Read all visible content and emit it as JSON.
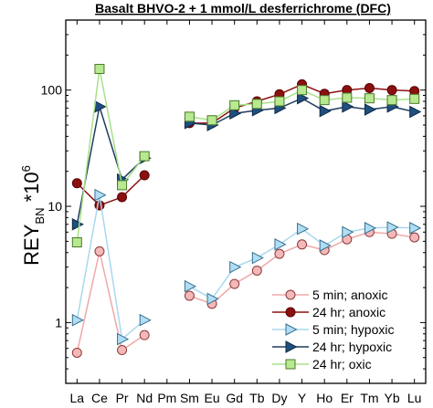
{
  "chart_data": {
    "type": "line",
    "title": "Basalt BHVO-2 + 1 mmol/L desferrichrome (DFC)",
    "ylabel": {
      "main": "REY",
      "sub": "BN",
      "tail": " *10",
      "sup": "6"
    },
    "yscale": "log",
    "ylim": [
      0.3,
      400
    ],
    "yticks": [
      1,
      10,
      100
    ],
    "ytick_labels": [
      "1",
      "10",
      "100"
    ],
    "categories": [
      "La",
      "Ce",
      "Pr",
      "Nd",
      "Pm",
      "Sm",
      "Eu",
      "Gd",
      "Tb",
      "Dy",
      "Y",
      "Ho",
      "Er",
      "Tm",
      "Yb",
      "Lu"
    ],
    "legend_position": "bottom-right",
    "series": [
      {
        "name": "5 min; anoxic",
        "marker": "circle",
        "color": "#f0a8a8",
        "marker_fill": "#f4b8b8",
        "marker_stroke": "#8b3a3a",
        "values": [
          0.55,
          4.1,
          0.58,
          0.78,
          null,
          1.7,
          1.45,
          2.15,
          2.8,
          3.9,
          4.7,
          4.2,
          5.2,
          6.0,
          5.8,
          5.4
        ]
      },
      {
        "name": "24 hr; anoxic",
        "marker": "circle",
        "color": "#8b1010",
        "marker_fill": "#8b1010",
        "marker_stroke": "#5a0000",
        "values": [
          15.8,
          10.2,
          12.0,
          18.5,
          null,
          52,
          52,
          70,
          80,
          92,
          112,
          93,
          100,
          104,
          100,
          98
        ]
      },
      {
        "name": "5 min; hypoxic",
        "marker": "triangle-right",
        "color": "#a8d8ef",
        "marker_fill": "#b0def4",
        "marker_stroke": "#3a6f8f",
        "values": [
          1.05,
          12.5,
          0.72,
          1.05,
          null,
          2.05,
          1.6,
          3.0,
          3.6,
          4.7,
          6.4,
          4.6,
          6.0,
          6.5,
          6.6,
          6.5
        ]
      },
      {
        "name": "24 hr; hypoxic",
        "marker": "triangle-right",
        "color": "#1f3f5f",
        "marker_fill": "#1f4f7f",
        "marker_stroke": "#0f2a45",
        "values": [
          7.0,
          72,
          17,
          26,
          null,
          52,
          50,
          63,
          67,
          70,
          85,
          66,
          72,
          68,
          72,
          65
        ]
      },
      {
        "name": "24 hr; oxic",
        "marker": "square",
        "color": "#a8e088",
        "marker_fill": "#b8e890",
        "marker_stroke": "#4a7a2a",
        "values": [
          4.9,
          152,
          15.2,
          27,
          null,
          59,
          55,
          74,
          76,
          80,
          100,
          82,
          86,
          85,
          82,
          84
        ]
      }
    ]
  }
}
